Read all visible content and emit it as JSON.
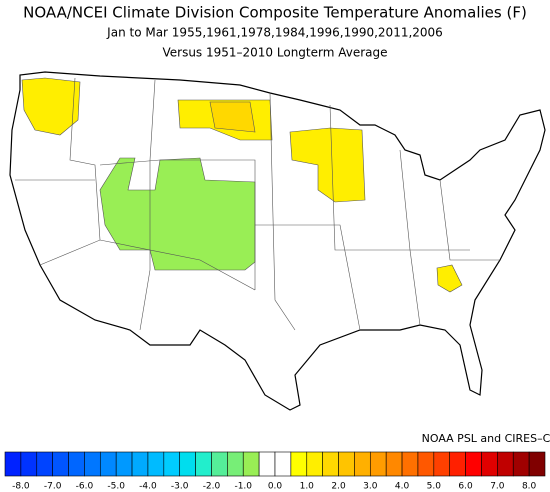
{
  "title": "NOAA/NCEI Climate Division Composite Temperature Anomalies (F)",
  "subtitle": "Jan to Mar  1955,1961,1978,1984,1996,1990,2011,2006",
  "baseline_note": "Versus 1951–2010 Longterm Average",
  "credit": "NOAA PSL and CIRES–CU",
  "colorbar": {
    "lim": [
      -8.5,
      8.5
    ],
    "bins": [
      -8.5,
      -8,
      -7.5,
      -7,
      -6.5,
      -6,
      -5.5,
      -5,
      -4.5,
      -4,
      -3.5,
      -3,
      -2.5,
      -2,
      -1.5,
      -1,
      -0.5,
      0,
      0.5,
      1,
      1.5,
      2,
      2.5,
      3,
      3.5,
      4,
      4.5,
      5,
      5.5,
      6,
      6.5,
      7,
      7.5,
      8,
      8.5
    ],
    "colors": [
      "#0022ff",
      "#0033ff",
      "#0044ff",
      "#0055ff",
      "#0066ff",
      "#0077ff",
      "#0088ff",
      "#0099ff",
      "#00aaff",
      "#00bbff",
      "#00ccff",
      "#00ddee",
      "#22eecc",
      "#55ee99",
      "#77ee77",
      "#99ee55",
      "#ffffff",
      "#ffffff",
      "#ffff00",
      "#ffee00",
      "#ffd800",
      "#ffc400",
      "#ffb000",
      "#ff9c00",
      "#ff8800",
      "#ff7000",
      "#ff5800",
      "#ff4000",
      "#ff2000",
      "#ff0000",
      "#e00000",
      "#c00000",
      "#a00000",
      "#800000"
    ],
    "ticks": [
      {
        "value": -8,
        "label": "-8.0"
      },
      {
        "value": -7,
        "label": "-7.0"
      },
      {
        "value": -6,
        "label": "-6.0"
      },
      {
        "value": -5,
        "label": "-5.0"
      },
      {
        "value": -4,
        "label": "-4.0"
      },
      {
        "value": -3,
        "label": "-3.0"
      },
      {
        "value": -2,
        "label": "-2.0"
      },
      {
        "value": -1,
        "label": "-1.0"
      },
      {
        "value": 0,
        "label": "0.0"
      },
      {
        "value": 1,
        "label": "1.0"
      },
      {
        "value": 2,
        "label": "2.0"
      },
      {
        "value": 3,
        "label": "3.0"
      },
      {
        "value": 4,
        "label": "4.0"
      },
      {
        "value": 5,
        "label": "5.0"
      },
      {
        "value": 6,
        "label": "6.0"
      },
      {
        "value": 7,
        "label": "7.0"
      },
      {
        "value": 8,
        "label": "8.0"
      }
    ]
  }
}
